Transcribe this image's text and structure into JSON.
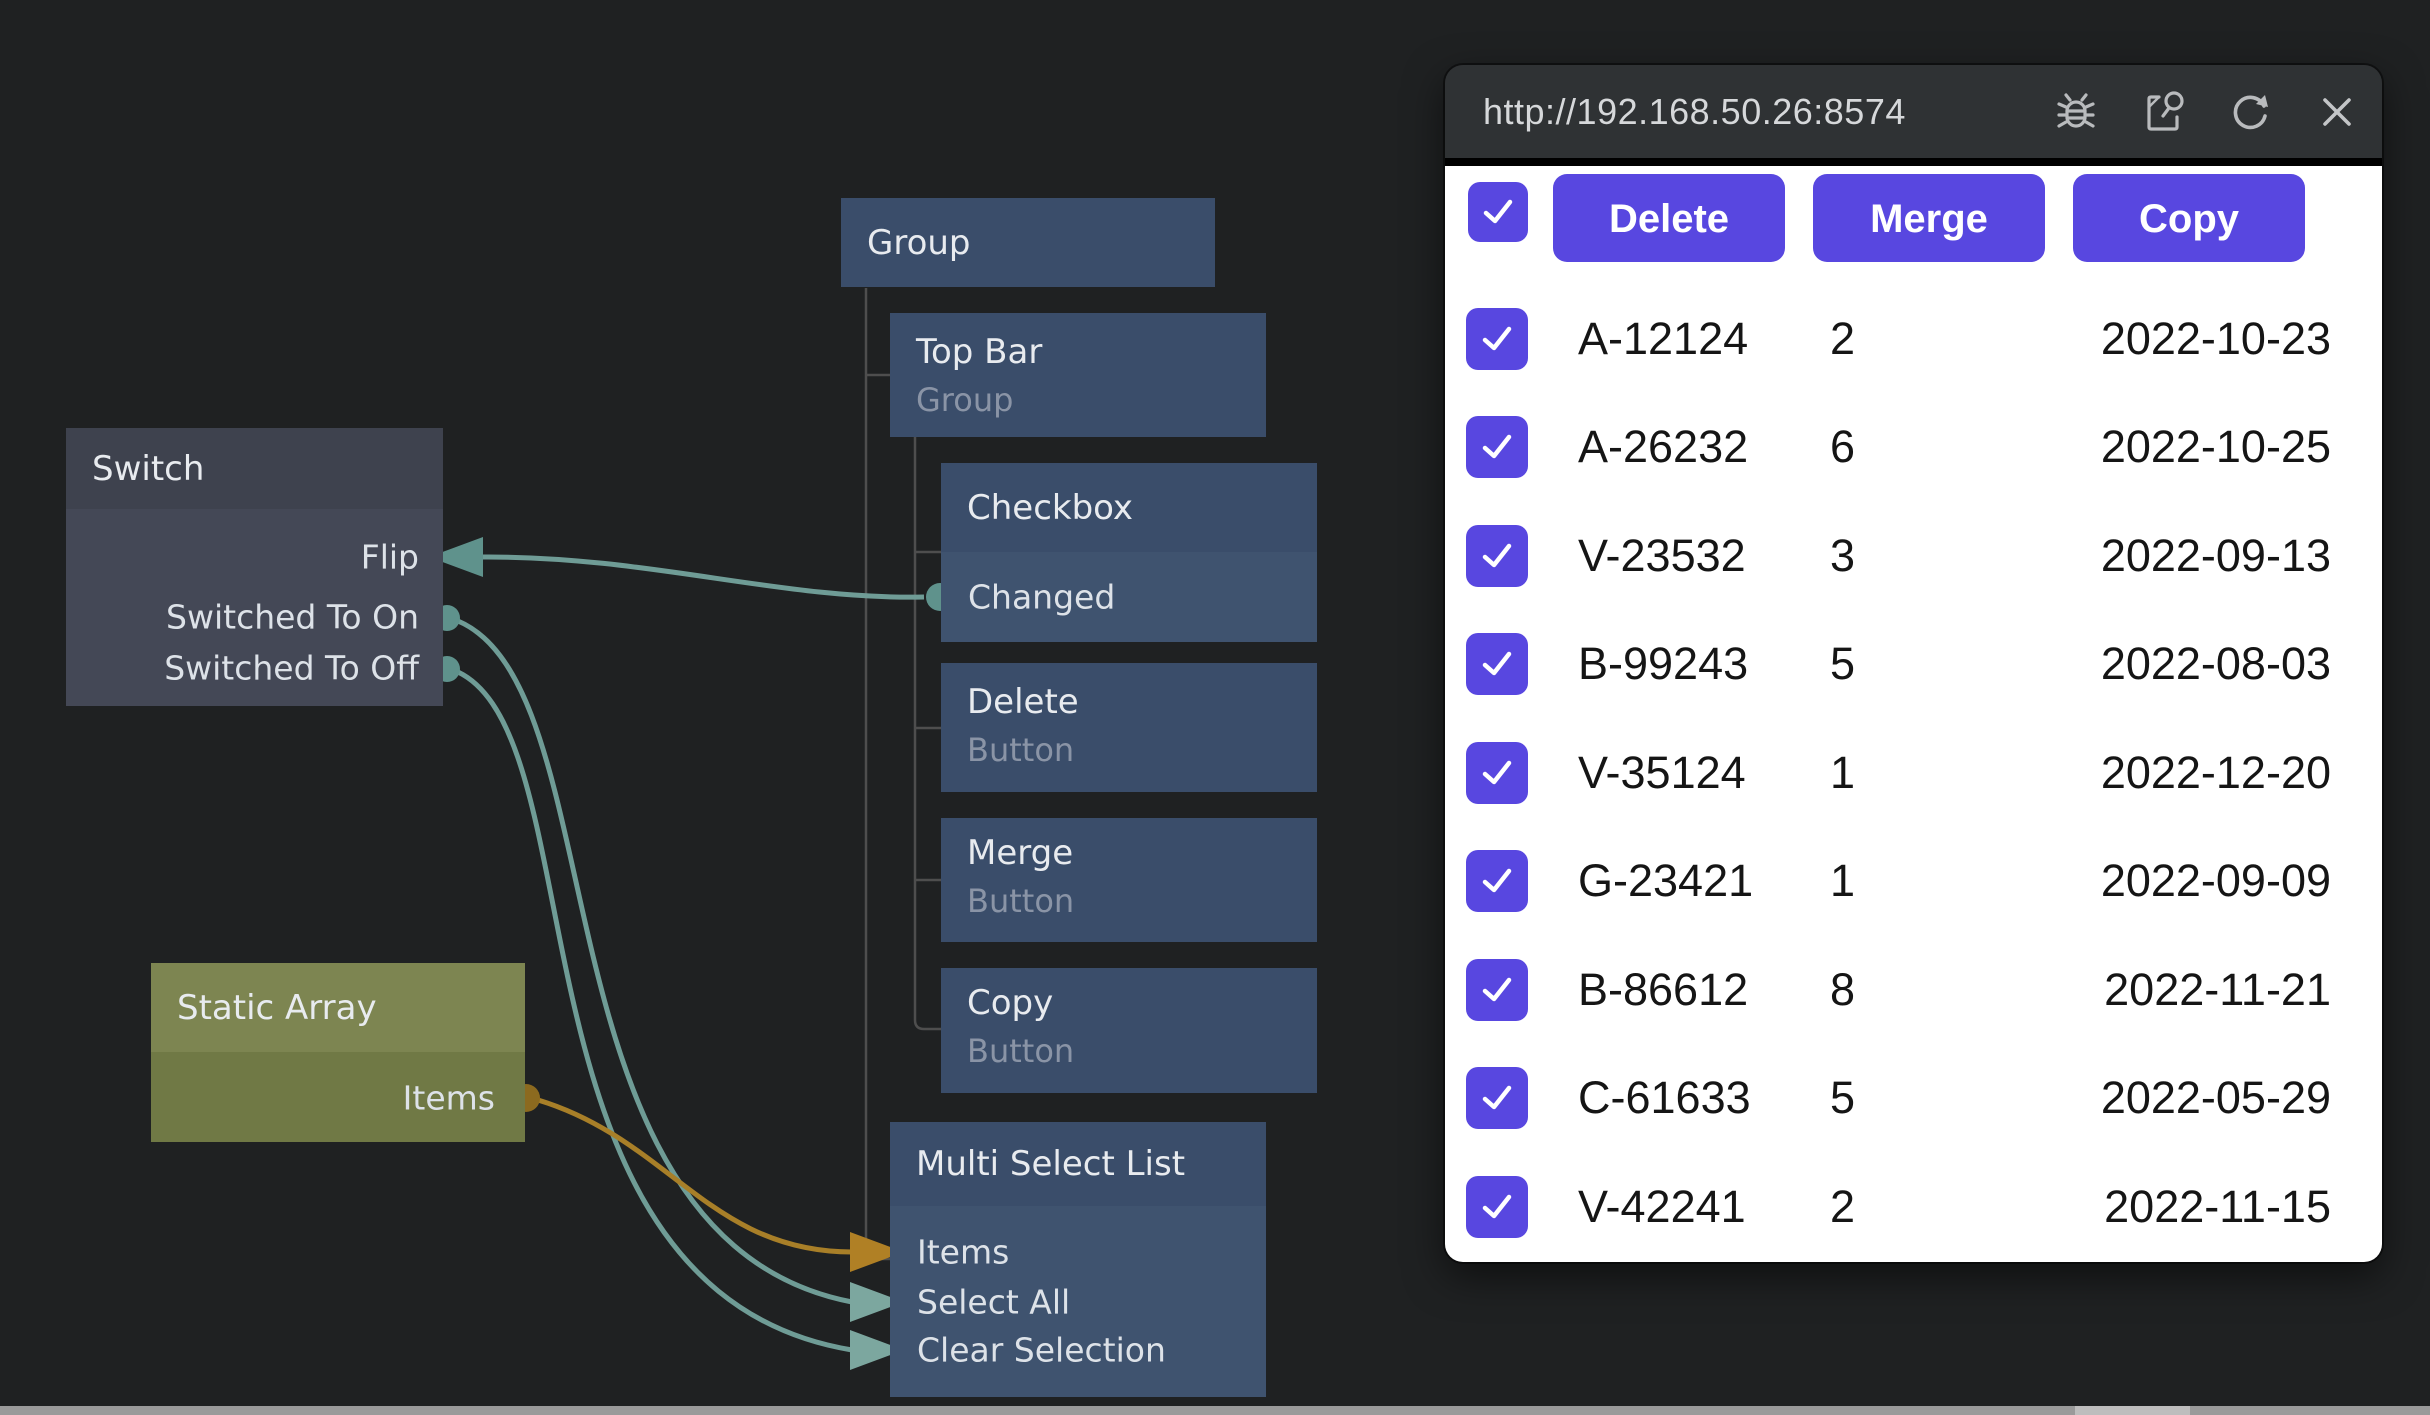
{
  "canvas": {
    "nodes": {
      "switch": {
        "title": "Switch",
        "ports": [
          {
            "label": "Flip"
          },
          {
            "label": "Switched To On"
          },
          {
            "label": "Switched To Off"
          }
        ]
      },
      "group": {
        "title": "Group"
      },
      "top_bar": {
        "title": "Top Bar",
        "subtitle": "Group"
      },
      "checkbox": {
        "title": "Checkbox",
        "ports": [
          {
            "label": "Changed"
          }
        ]
      },
      "delete_button": {
        "title": "Delete",
        "subtitle": "Button"
      },
      "merge_button": {
        "title": "Merge",
        "subtitle": "Button"
      },
      "copy_button": {
        "title": "Copy",
        "subtitle": "Button"
      },
      "multi_select_list": {
        "title": "Multi Select List",
        "ports": [
          {
            "label": "Items"
          },
          {
            "label": "Select All"
          },
          {
            "label": "Clear Selection"
          }
        ]
      },
      "static_array": {
        "title": "Static Array",
        "ports": [
          {
            "label": "Items"
          }
        ]
      }
    },
    "colors": {
      "node_slate": "#444856",
      "node_blue": "#3f536f",
      "node_olive": "#707945",
      "wire_teal": "#6f9c96",
      "wire_gold": "#a87f28",
      "port_teal": "#5f928c",
      "port_gold": "#8c6a1f"
    }
  },
  "browser": {
    "url": "http://192.168.50.26:8574",
    "titlebar_icons": [
      "bug-icon",
      "inspect-icon",
      "refresh-icon",
      "close-icon"
    ],
    "accent_color": "#5847e0",
    "toolbar": {
      "delete_label": "Delete",
      "merge_label": "Merge",
      "copy_label": "Copy"
    },
    "rows": [
      {
        "id": "A-12124",
        "qty": "2",
        "date": "2022-10-23"
      },
      {
        "id": "A-26232",
        "qty": "6",
        "date": "2022-10-25"
      },
      {
        "id": "V-23532",
        "qty": "3",
        "date": "2022-09-13"
      },
      {
        "id": "B-99243",
        "qty": "5",
        "date": "2022-08-03"
      },
      {
        "id": "V-35124",
        "qty": "1",
        "date": "2022-12-20"
      },
      {
        "id": "G-23421",
        "qty": "1",
        "date": "2022-09-09"
      },
      {
        "id": "B-86612",
        "qty": "8",
        "date": "2022-11-21"
      },
      {
        "id": "C-61633",
        "qty": "5",
        "date": "2022-05-29"
      },
      {
        "id": "V-42241",
        "qty": "2",
        "date": "2022-11-15"
      }
    ]
  }
}
